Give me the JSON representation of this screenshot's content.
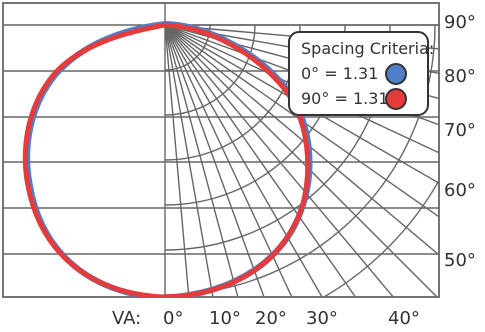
{
  "chart_data": {
    "type": "polar",
    "title": "",
    "xlabel": "VA:",
    "ylabel": "",
    "grid": true,
    "x_tick_labels": [
      "0°",
      "10°",
      "20°",
      "30°",
      "40°"
    ],
    "y_tick_labels": [
      "90°",
      "80°",
      "70°",
      "60°",
      "50°"
    ],
    "legend": {
      "title": "Spacing Criteria:",
      "placement": "top-right"
    },
    "series": [
      {
        "name": "0° = 1.31",
        "color": "#4E7FC8",
        "values": [
          1.31
        ]
      },
      {
        "name": "90° = 1.31",
        "color": "#E43B3B",
        "values": [
          1.31
        ]
      }
    ]
  }
}
